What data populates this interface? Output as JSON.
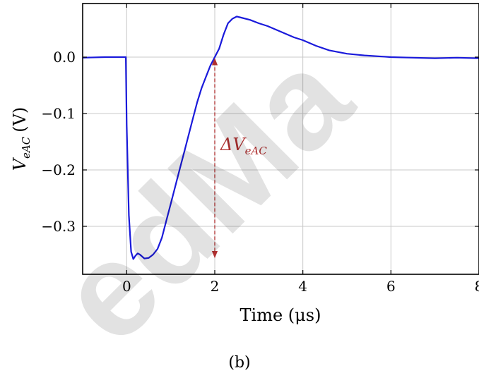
{
  "chart_data": {
    "type": "line",
    "xlabel": "Time (μs)",
    "ylabel_main": "V",
    "ylabel_sub": "eAC",
    "ylabel_unit": "(V)",
    "caption": "(b)",
    "watermark": "edMa",
    "xlim": [
      -1,
      8
    ],
    "ylim": [
      -0.385,
      0.095
    ],
    "xticks": [
      0,
      2,
      4,
      6,
      8
    ],
    "xtick_labels": [
      "0",
      "2",
      "4",
      "6",
      "8"
    ],
    "yticks": [
      0.0,
      -0.1,
      -0.2,
      -0.3
    ],
    "ytick_labels": [
      "0.0",
      "−0.1",
      "−0.2",
      "−0.3"
    ],
    "grid": true,
    "annotation": {
      "label_main": "ΔV",
      "label_sub": "eAC",
      "x": 2.0,
      "y_top": -0.003,
      "y_bottom": -0.355
    },
    "series": [
      {
        "color": "#1a1adb",
        "x": [
          -1.0,
          -0.5,
          -0.02,
          0.0,
          0.05,
          0.1,
          0.15,
          0.2,
          0.25,
          0.3,
          0.4,
          0.5,
          0.6,
          0.7,
          0.8,
          0.9,
          1.0,
          1.1,
          1.2,
          1.3,
          1.4,
          1.5,
          1.6,
          1.7,
          1.8,
          1.9,
          2.0,
          2.1,
          2.2,
          2.3,
          2.4,
          2.5,
          2.6,
          2.8,
          3.0,
          3.2,
          3.5,
          3.8,
          4.0,
          4.3,
          4.6,
          5.0,
          5.4,
          5.8,
          6.0,
          6.5,
          7.0,
          7.5,
          8.0
        ],
        "y": [
          -0.001,
          0.0,
          0.0,
          -0.12,
          -0.28,
          -0.345,
          -0.358,
          -0.352,
          -0.348,
          -0.35,
          -0.357,
          -0.356,
          -0.35,
          -0.34,
          -0.32,
          -0.29,
          -0.26,
          -0.23,
          -0.2,
          -0.17,
          -0.14,
          -0.11,
          -0.08,
          -0.055,
          -0.035,
          -0.015,
          0.0,
          0.015,
          0.04,
          0.06,
          0.068,
          0.072,
          0.07,
          0.066,
          0.06,
          0.055,
          0.045,
          0.035,
          0.03,
          0.02,
          0.012,
          0.006,
          0.003,
          0.001,
          0.0,
          -0.001,
          -0.002,
          -0.001,
          -0.002
        ]
      }
    ]
  }
}
